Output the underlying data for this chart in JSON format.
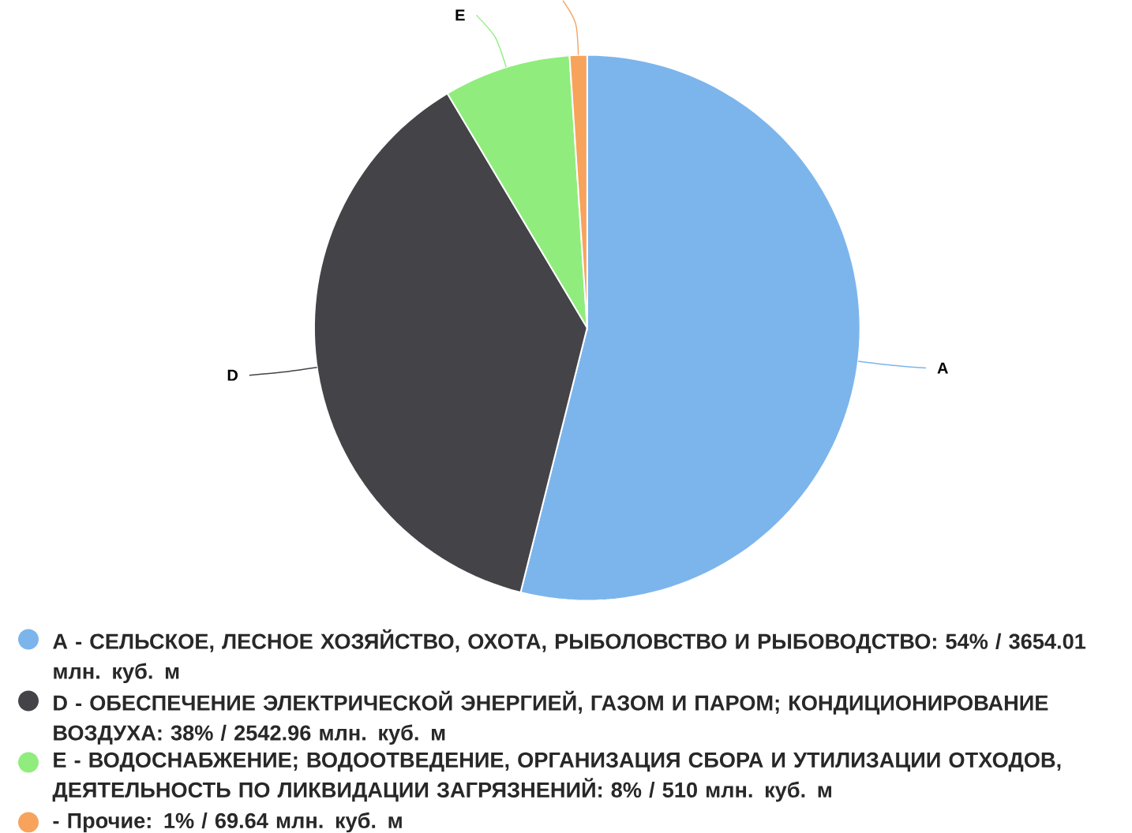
{
  "chart_data": {
    "type": "pie",
    "legend": "bottom",
    "categories": [
      "A - СЕЛЬСКОЕ, ЛЕСНОЕ ХОЗЯЙСТВО, ОХОТА, РЫБОЛОВСТВО И РЫБОВОДСТВО: 54% / 3654.01 млн. куб. м",
      "D - ОБЕСПЕЧЕНИЕ ЭЛЕКТРИЧЕСКОЙ ЭНЕРГИЕЙ, ГАЗОМ И ПАРОМ; КОНДИЦИОНИРОВАНИЕ ВОЗДУХА: 38% / 2542.96 млн. куб. м",
      "E - ВОДОСНАБЖЕНИЕ; ВОДООТВЕДЕНИЕ, ОРГАНИЗАЦИЯ СБОРА И УТИЛИЗАЦИИ ОТХОДОВ, ДЕЯТЕЛЬНОСТЬ ПО ЛИКВИДАЦИИ ЗАГРЯЗНЕНИЙ: 8% / 510 млн. куб. м",
      "- Прочие: 1% / 69.64 млн. куб. м"
    ],
    "values": [
      3654.01,
      2542.96,
      510,
      69.64
    ],
    "colors": [
      "#7cb5ec",
      "#434348",
      "#90ed7d",
      "#f7a35c"
    ],
    "annotations": [
      "A",
      "D",
      "E"
    ]
  }
}
